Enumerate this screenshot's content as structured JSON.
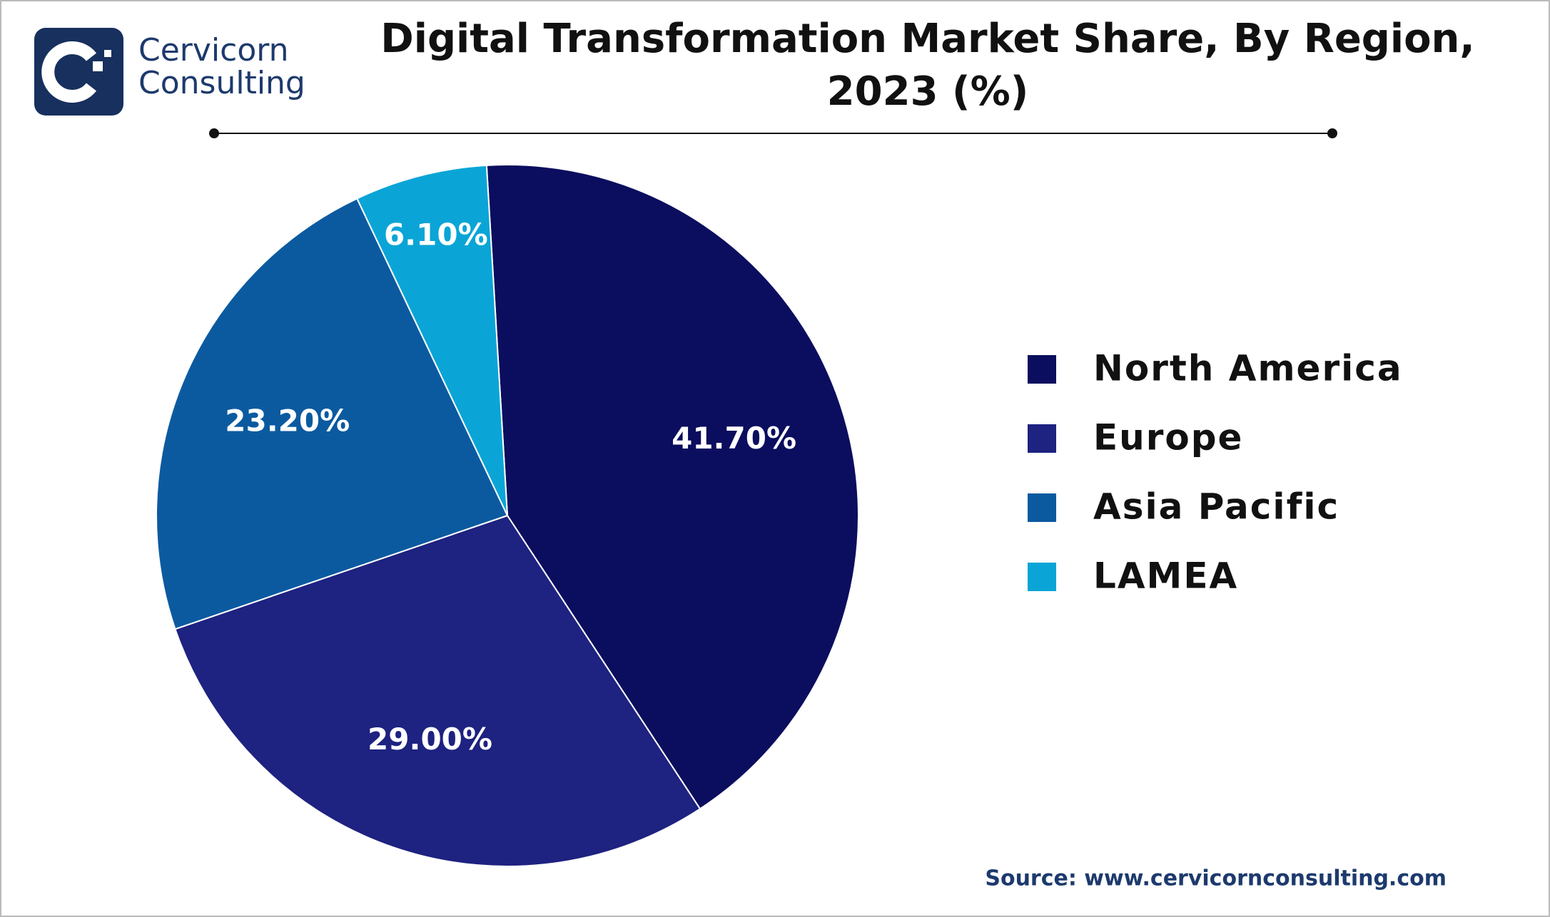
{
  "brand": {
    "line1": "Cervicorn",
    "line2": "Consulting"
  },
  "chart_data": {
    "type": "pie",
    "title": "Digital Transformation Market Share, By Region,",
    "subtitle": "2023 (%)",
    "categories": [
      "North America",
      "Europe",
      "Asia Pacific",
      "LAMEA"
    ],
    "values": [
      41.7,
      29.0,
      23.2,
      6.1
    ],
    "value_labels": [
      "41.70%",
      "29.00%",
      "23.20%",
      "6.10%"
    ],
    "colors": [
      "#0b0d5e",
      "#1e2280",
      "#0b5aa0",
      "#0aa5d6"
    ],
    "legend": "right"
  },
  "source": "Source: www.cervicornconsulting.com"
}
